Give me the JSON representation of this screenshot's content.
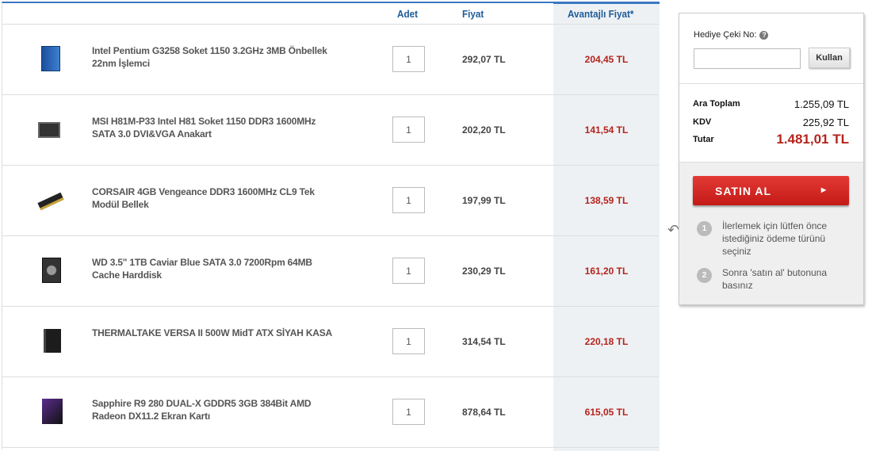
{
  "header": {
    "qty": "Adet",
    "price": "Fiyat",
    "adv_price": "Avantajlı Fiyat*"
  },
  "items": [
    {
      "name": "Intel Pentium G3258 Soket 1150 3.2GHz 3MB Önbellek 22nm İşlemci",
      "qty": "1",
      "price": "292,07 TL",
      "adv": "204,45 TL",
      "icon": "cpu-box"
    },
    {
      "name": "MSI H81M-P33 Intel H81 Soket 1150 DDR3 1600MHz SATA 3.0 DVI&VGA Anakart",
      "qty": "1",
      "price": "202,20 TL",
      "adv": "141,54 TL",
      "icon": "motherboard"
    },
    {
      "name": "CORSAIR 4GB Vengeance DDR3 1600MHz CL9 Tek Modül Bellek",
      "qty": "1",
      "price": "197,99 TL",
      "adv": "138,59 TL",
      "icon": "ram"
    },
    {
      "name": "WD 3.5\" 1TB Caviar Blue SATA 3.0 7200Rpm 64MB Cache Harddisk",
      "qty": "1",
      "price": "230,29 TL",
      "adv": "161,20 TL",
      "icon": "hdd"
    },
    {
      "name": "THERMALTAKE VERSA II 500W MidT ATX SİYAH KASA",
      "qty": "1",
      "price": "314,54 TL",
      "adv": "220,18 TL",
      "icon": "pc-case"
    },
    {
      "name": "Sapphire R9 280 DUAL-X GDDR5 3GB 384Bit AMD Radeon DX11.2 Ekran Kartı",
      "qty": "1",
      "price": "878,64 TL",
      "adv": "615,05 TL",
      "icon": "gpu-box"
    }
  ],
  "summary": {
    "gift_label": "Hediye Çeki No:",
    "gift_value": "",
    "use_label": "Kullan",
    "subtotal_label": "Ara Toplam",
    "subtotal": "1.255,09 TL",
    "tax_label": "KDV",
    "tax": "225,92 TL",
    "total_label": "Tutar",
    "total": "1.481,01 TL",
    "buy_label": "SATIN AL",
    "steps": [
      {
        "n": "1",
        "text": "İlerlemek için lütfen önce istediğiniz ödeme türünü seçiniz"
      },
      {
        "n": "2",
        "text": "Sonra 'satın al' butonuna basınız"
      }
    ]
  },
  "colors": {
    "accent": "#3a78c3",
    "price_red": "#b5231b",
    "buy_button": "#d42a26"
  }
}
